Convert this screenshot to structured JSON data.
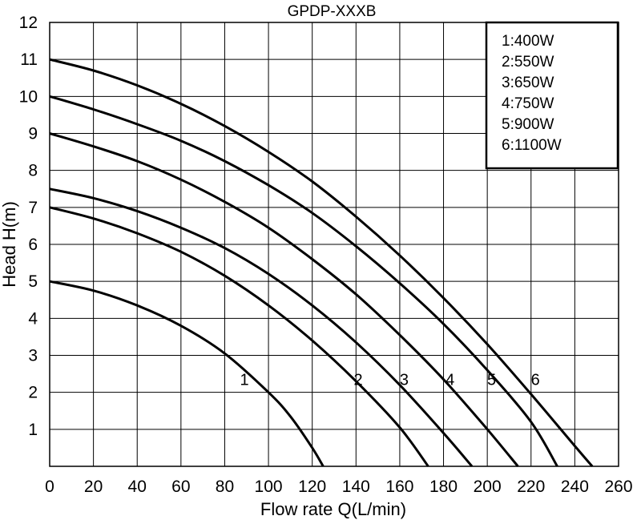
{
  "chart_data": {
    "type": "line",
    "title": "GPDP-XXXB",
    "xlabel": "Flow rate Q(L/min)",
    "ylabel": "Head H(m)",
    "xlim": [
      0,
      260
    ],
    "ylim": [
      0,
      12
    ],
    "x_ticks": [
      0,
      20,
      40,
      60,
      80,
      100,
      120,
      140,
      160,
      180,
      200,
      220,
      240,
      260
    ],
    "y_ticks": [
      1,
      2,
      3,
      4,
      5,
      6,
      7,
      8,
      9,
      10,
      11,
      12
    ],
    "x_tick_labels": [
      "0",
      "20",
      "40",
      "60",
      "80",
      "100",
      "120",
      "140",
      "160",
      "180",
      "200",
      "220",
      "240",
      "260"
    ],
    "y_tick_labels": [
      "1",
      "2",
      "3",
      "4",
      "5",
      "6",
      "7",
      "8",
      "9",
      "10",
      "11",
      "12"
    ],
    "grid": true,
    "legend": {
      "position": "top-right",
      "entries": [
        "1:400W",
        "2:550W",
        "3:650W",
        "4:750W",
        "5:900W",
        "6:1100W"
      ]
    },
    "series": [
      {
        "label": "1",
        "label_at": [
          89,
          2.2
        ],
        "points": [
          [
            0,
            5.0
          ],
          [
            20,
            4.75
          ],
          [
            40,
            4.35
          ],
          [
            60,
            3.8
          ],
          [
            80,
            3.05
          ],
          [
            100,
            2.0
          ],
          [
            110,
            1.35
          ],
          [
            120,
            0.5
          ],
          [
            125,
            0.0
          ]
        ]
      },
      {
        "label": "2",
        "label_at": [
          141,
          2.2
        ],
        "points": [
          [
            0,
            7.0
          ],
          [
            20,
            6.7
          ],
          [
            40,
            6.3
          ],
          [
            60,
            5.8
          ],
          [
            80,
            5.15
          ],
          [
            100,
            4.35
          ],
          [
            120,
            3.4
          ],
          [
            140,
            2.3
          ],
          [
            160,
            1.05
          ],
          [
            173,
            0.0
          ]
        ]
      },
      {
        "label": "3",
        "label_at": [
          162,
          2.2
        ],
        "points": [
          [
            0,
            7.5
          ],
          [
            20,
            7.25
          ],
          [
            40,
            6.9
          ],
          [
            60,
            6.45
          ],
          [
            80,
            5.9
          ],
          [
            100,
            5.2
          ],
          [
            120,
            4.35
          ],
          [
            140,
            3.35
          ],
          [
            160,
            2.2
          ],
          [
            180,
            0.9
          ],
          [
            193,
            0.0
          ]
        ]
      },
      {
        "label": "4",
        "label_at": [
          183,
          2.2
        ],
        "points": [
          [
            0,
            9.0
          ],
          [
            20,
            8.65
          ],
          [
            40,
            8.25
          ],
          [
            60,
            7.75
          ],
          [
            80,
            7.15
          ],
          [
            100,
            6.45
          ],
          [
            120,
            5.6
          ],
          [
            140,
            4.65
          ],
          [
            160,
            3.55
          ],
          [
            180,
            2.35
          ],
          [
            200,
            1.0
          ],
          [
            214,
            0.0
          ]
        ]
      },
      {
        "label": "5",
        "label_at": [
          202,
          2.2
        ],
        "points": [
          [
            0,
            10.0
          ],
          [
            20,
            9.65
          ],
          [
            40,
            9.25
          ],
          [
            60,
            8.8
          ],
          [
            80,
            8.25
          ],
          [
            100,
            7.6
          ],
          [
            120,
            6.85
          ],
          [
            140,
            5.95
          ],
          [
            160,
            4.95
          ],
          [
            180,
            3.85
          ],
          [
            200,
            2.6
          ],
          [
            220,
            1.2
          ],
          [
            232,
            0.0
          ]
        ]
      },
      {
        "label": "6",
        "label_at": [
          222,
          2.2
        ],
        "points": [
          [
            0,
            11.0
          ],
          [
            20,
            10.7
          ],
          [
            40,
            10.3
          ],
          [
            60,
            9.8
          ],
          [
            80,
            9.2
          ],
          [
            100,
            8.5
          ],
          [
            120,
            7.7
          ],
          [
            140,
            6.75
          ],
          [
            160,
            5.7
          ],
          [
            180,
            4.55
          ],
          [
            200,
            3.3
          ],
          [
            220,
            1.95
          ],
          [
            240,
            0.55
          ],
          [
            248,
            0.0
          ]
        ]
      }
    ]
  }
}
